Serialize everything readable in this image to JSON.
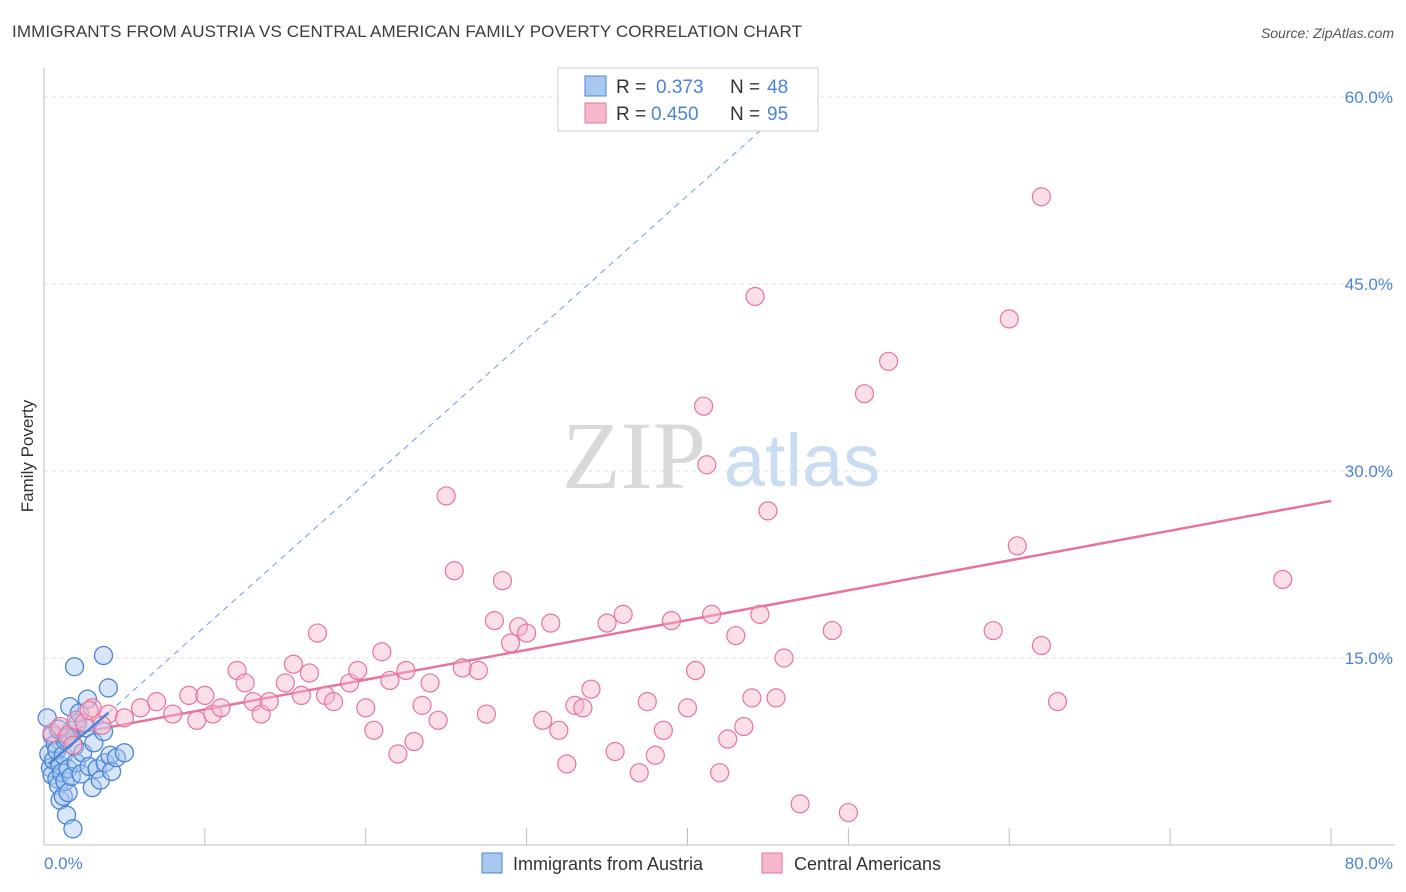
{
  "title": "IMMIGRANTS FROM AUSTRIA VS CENTRAL AMERICAN FAMILY POVERTY CORRELATION CHART",
  "source": "Source: ZipAtlas.com",
  "watermark": {
    "zip": "ZIP",
    "atlas": "atlas"
  },
  "colors": {
    "blue": "#4a84d6",
    "blue_fill": "#a9c8ef",
    "pink": "#e6749e",
    "pink_fill": "#f5b8cc",
    "grid": "#e2e2e2"
  },
  "chart_data": {
    "type": "scatter",
    "title": "IMMIGRANTS FROM AUSTRIA VS CENTRAL AMERICAN FAMILY POVERTY CORRELATION CHART",
    "xlabel": "",
    "ylabel": "Family Poverty",
    "xlim": [
      0,
      80
    ],
    "ylim": [
      0,
      60
    ],
    "x_tick_labels": [
      "0.0%",
      "80.0%"
    ],
    "y_ticks": [
      15,
      30,
      45,
      60
    ],
    "y_tick_labels": [
      "15.0%",
      "30.0%",
      "45.0%",
      "60.0%"
    ],
    "grid": true,
    "stats": [
      {
        "r_label": "R =",
        "r_value": "0.373",
        "n_label": "N =",
        "n_value": "48"
      },
      {
        "r_label": "R =",
        "r_value": "0.450",
        "n_label": "N =",
        "n_value": "95"
      }
    ],
    "series": [
      {
        "name": "Immigrants from Austria",
        "color": "#4a84d6",
        "trend": {
          "solid": [
            [
              0.3,
              6.5
            ],
            [
              4.0,
              10.6
            ]
          ],
          "dashed": [
            [
              4.0,
              10.6
            ],
            [
              46.0,
              59.0
            ]
          ]
        },
        "points": [
          [
            0.2,
            10.2
          ],
          [
            0.3,
            7.3
          ],
          [
            0.4,
            6.2
          ],
          [
            0.5,
            8.8
          ],
          [
            0.5,
            5.6
          ],
          [
            0.6,
            6.8
          ],
          [
            0.7,
            8.1
          ],
          [
            0.8,
            5.3
          ],
          [
            0.8,
            7.6
          ],
          [
            0.9,
            4.8
          ],
          [
            1.0,
            6.4
          ],
          [
            1.0,
            3.6
          ],
          [
            1.1,
            5.8
          ],
          [
            1.2,
            7.2
          ],
          [
            1.2,
            3.9
          ],
          [
            1.3,
            5.1
          ],
          [
            1.3,
            8.4
          ],
          [
            1.4,
            2.4
          ],
          [
            1.5,
            6.1
          ],
          [
            1.5,
            4.2
          ],
          [
            1.6,
            11.1
          ],
          [
            1.7,
            5.5
          ],
          [
            1.7,
            9.2
          ],
          [
            1.8,
            1.3
          ],
          [
            1.9,
            7.9
          ],
          [
            1.9,
            14.3
          ],
          [
            2.0,
            6.6
          ],
          [
            2.1,
            9.8
          ],
          [
            2.2,
            10.6
          ],
          [
            2.3,
            5.7
          ],
          [
            2.4,
            7.4
          ],
          [
            2.6,
            9.4
          ],
          [
            2.7,
            11.7
          ],
          [
            2.8,
            6.3
          ],
          [
            3.0,
            4.6
          ],
          [
            3.1,
            8.2
          ],
          [
            3.3,
            6.1
          ],
          [
            3.5,
            5.2
          ],
          [
            3.7,
            9.1
          ],
          [
            3.8,
            6.6
          ],
          [
            4.0,
            12.6
          ],
          [
            4.1,
            7.2
          ],
          [
            4.2,
            5.9
          ],
          [
            4.5,
            7.0
          ],
          [
            5.0,
            7.4
          ],
          [
            0.9,
            9.3
          ],
          [
            1.4,
            8.6
          ],
          [
            3.7,
            15.2
          ]
        ]
      },
      {
        "name": "Central Americans",
        "color": "#e6749e",
        "trend": {
          "solid": [
            [
              0.5,
              8.6
            ],
            [
              80.0,
              27.6
            ]
          ]
        },
        "points": [
          [
            0.5,
            9.0
          ],
          [
            1.0,
            9.5
          ],
          [
            1.5,
            8.8
          ],
          [
            2.0,
            10.0
          ],
          [
            2.5,
            9.8
          ],
          [
            3.0,
            11.0
          ],
          [
            4.0,
            10.5
          ],
          [
            5.0,
            10.2
          ],
          [
            6.0,
            11.0
          ],
          [
            7.0,
            11.5
          ],
          [
            8.0,
            10.5
          ],
          [
            9.0,
            12.0
          ],
          [
            9.5,
            10.0
          ],
          [
            10.0,
            12.0
          ],
          [
            10.5,
            10.5
          ],
          [
            11.0,
            11.0
          ],
          [
            12.0,
            14.0
          ],
          [
            12.5,
            13.0
          ],
          [
            13.0,
            11.5
          ],
          [
            13.5,
            10.5
          ],
          [
            14.0,
            11.5
          ],
          [
            15.0,
            13.0
          ],
          [
            15.5,
            14.5
          ],
          [
            16.0,
            12.0
          ],
          [
            16.5,
            13.8
          ],
          [
            17.0,
            17.0
          ],
          [
            17.5,
            12.0
          ],
          [
            18.0,
            11.5
          ],
          [
            19.0,
            13.0
          ],
          [
            19.5,
            14.0
          ],
          [
            20.0,
            11.0
          ],
          [
            20.5,
            9.2
          ],
          [
            21.0,
            15.5
          ],
          [
            21.5,
            13.2
          ],
          [
            22.0,
            7.3
          ],
          [
            22.5,
            14.0
          ],
          [
            23.0,
            8.3
          ],
          [
            23.5,
            11.2
          ],
          [
            24.0,
            13.0
          ],
          [
            24.5,
            10.0
          ],
          [
            25.0,
            28.0
          ],
          [
            25.5,
            22.0
          ],
          [
            26.0,
            14.2
          ],
          [
            27.0,
            14.0
          ],
          [
            27.5,
            10.5
          ],
          [
            28.0,
            18.0
          ],
          [
            28.5,
            21.2
          ],
          [
            29.0,
            16.2
          ],
          [
            29.5,
            17.5
          ],
          [
            30.0,
            17.0
          ],
          [
            31.0,
            10.0
          ],
          [
            31.5,
            17.8
          ],
          [
            32.0,
            9.2
          ],
          [
            32.5,
            6.5
          ],
          [
            33.0,
            11.2
          ],
          [
            33.5,
            11.0
          ],
          [
            34.0,
            12.5
          ],
          [
            35.0,
            17.8
          ],
          [
            35.5,
            7.5
          ],
          [
            36.0,
            18.5
          ],
          [
            37.0,
            5.8
          ],
          [
            37.5,
            11.5
          ],
          [
            38.0,
            7.2
          ],
          [
            38.5,
            9.2
          ],
          [
            39.0,
            18.0
          ],
          [
            40.0,
            11.0
          ],
          [
            40.5,
            14.0
          ],
          [
            41.0,
            35.2
          ],
          [
            41.2,
            30.5
          ],
          [
            41.5,
            18.5
          ],
          [
            42.0,
            5.8
          ],
          [
            42.5,
            8.5
          ],
          [
            43.0,
            16.8
          ],
          [
            43.5,
            9.5
          ],
          [
            44.0,
            11.8
          ],
          [
            44.2,
            44.0
          ],
          [
            44.5,
            18.5
          ],
          [
            45.0,
            26.8
          ],
          [
            45.5,
            11.8
          ],
          [
            46.0,
            15.0
          ],
          [
            47.0,
            3.3
          ],
          [
            49.0,
            17.2
          ],
          [
            50.0,
            2.6
          ],
          [
            51.0,
            36.2
          ],
          [
            52.5,
            38.8
          ],
          [
            59.0,
            17.2
          ],
          [
            60.0,
            42.2
          ],
          [
            62.0,
            52.0
          ],
          [
            60.5,
            24.0
          ],
          [
            62.0,
            16.0
          ],
          [
            63.0,
            11.5
          ],
          [
            77.0,
            21.3
          ],
          [
            1.8,
            8.0
          ],
          [
            2.8,
            10.8
          ],
          [
            3.6,
            9.6
          ]
        ]
      }
    ]
  }
}
